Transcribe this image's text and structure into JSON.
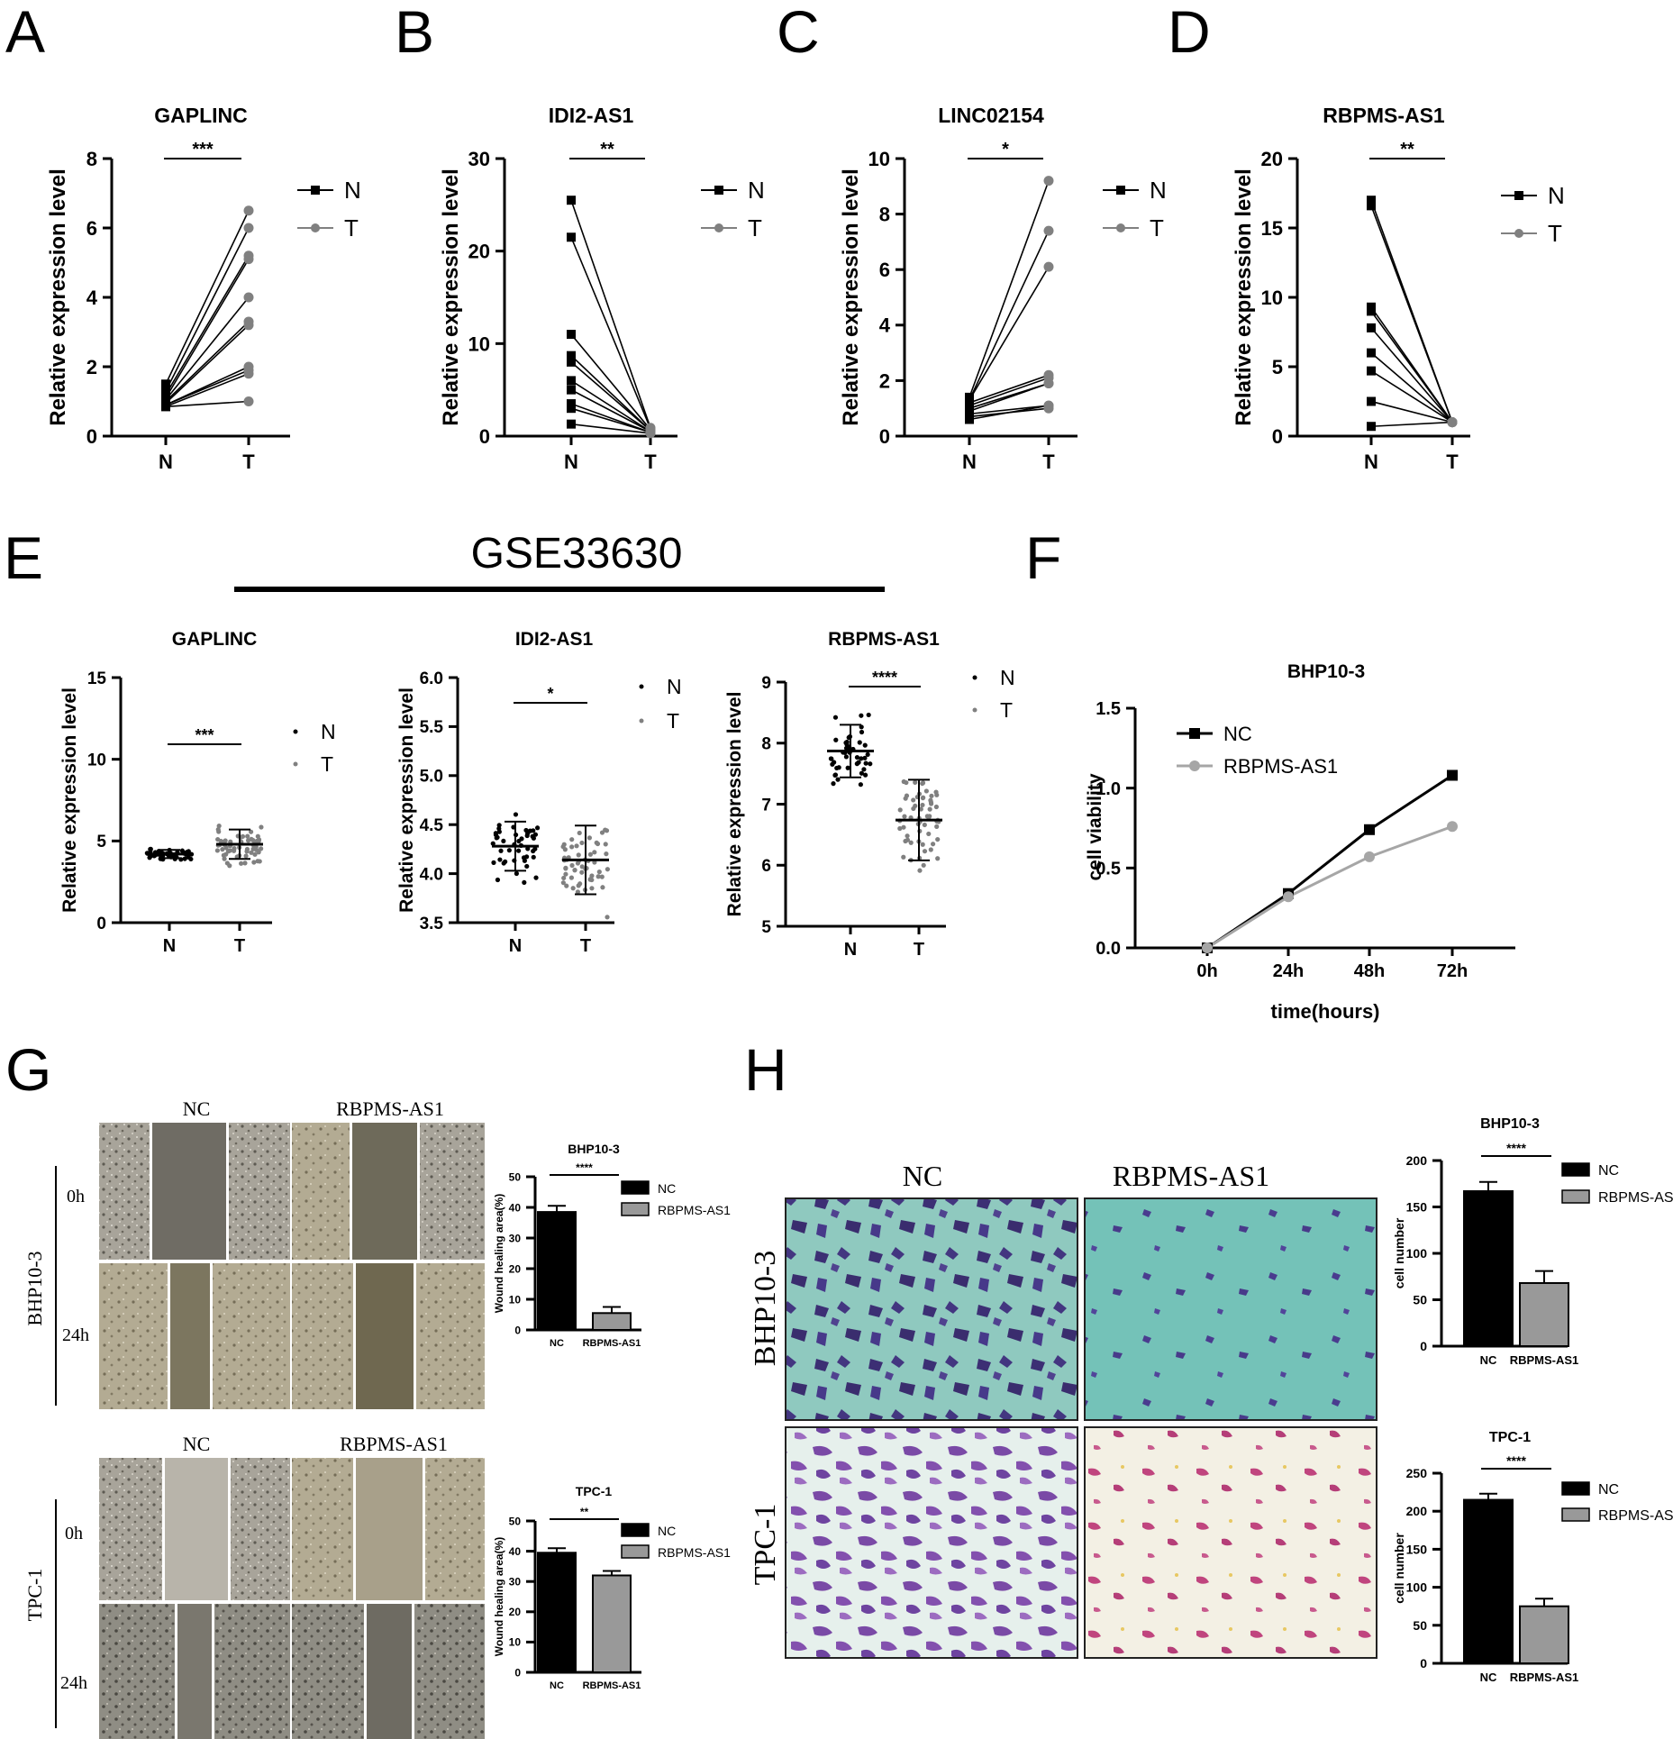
{
  "panels": {
    "A": "A",
    "B": "B",
    "C": "C",
    "D": "D",
    "E": "E",
    "F": "F",
    "G": "G",
    "H": "H"
  },
  "e_header": "GSE33630",
  "common": {
    "ylabel": "Relative expression level",
    "x_n": "N",
    "x_t": "T",
    "legend_n": "N",
    "legend_t": "T"
  },
  "colors": {
    "n": "#000000",
    "t": "#808080",
    "nc_bar": "#000000",
    "rb_bar": "#999999"
  },
  "chart_data": [
    {
      "id": "A",
      "type": "line",
      "title": "GAPLINC",
      "sig": "***",
      "ylabel": "Relative expression level",
      "ylim": [
        0,
        8
      ],
      "yticks": [
        0,
        2,
        4,
        6,
        8
      ],
      "categories": [
        "N",
        "T"
      ],
      "pairs": [
        [
          1.5,
          6.5
        ],
        [
          1.3,
          6.0
        ],
        [
          1.2,
          5.2
        ],
        [
          1.1,
          5.1
        ],
        [
          1.05,
          4.0
        ],
        [
          1.0,
          3.3
        ],
        [
          0.95,
          3.2
        ],
        [
          0.9,
          2.0
        ],
        [
          0.9,
          1.9
        ],
        [
          0.85,
          1.8
        ],
        [
          0.85,
          1.0
        ]
      ]
    },
    {
      "id": "B",
      "type": "line",
      "title": "IDI2-AS1",
      "sig": "**",
      "ylabel": "Relative expression level",
      "ylim": [
        0,
        30
      ],
      "yticks": [
        0,
        10,
        20,
        30
      ],
      "categories": [
        "N",
        "T"
      ],
      "pairs": [
        [
          25.5,
          0.9
        ],
        [
          21.5,
          0.8
        ],
        [
          11.0,
          0.7
        ],
        [
          8.7,
          0.6
        ],
        [
          8.0,
          0.6
        ],
        [
          6.0,
          0.5
        ],
        [
          5.0,
          0.5
        ],
        [
          3.5,
          0.4
        ],
        [
          3.0,
          0.4
        ],
        [
          1.3,
          0.3
        ]
      ]
    },
    {
      "id": "C",
      "type": "line",
      "title": "LINC02154",
      "sig": "*",
      "ylabel": "Relative expression level",
      "ylim": [
        0,
        10
      ],
      "yticks": [
        0,
        2,
        4,
        6,
        8,
        10
      ],
      "categories": [
        "N",
        "T"
      ],
      "pairs": [
        [
          1.4,
          9.2
        ],
        [
          1.3,
          7.4
        ],
        [
          1.3,
          6.1
        ],
        [
          1.2,
          2.2
        ],
        [
          1.1,
          2.1
        ],
        [
          1.0,
          1.9
        ],
        [
          0.9,
          1.9
        ],
        [
          0.8,
          1.1
        ],
        [
          0.7,
          1.0
        ],
        [
          0.6,
          1.1
        ]
      ]
    },
    {
      "id": "D",
      "type": "line",
      "title": "RBPMS-AS1",
      "sig": "**",
      "ylabel": "Relative expression level",
      "ylim": [
        0,
        20
      ],
      "yticks": [
        0,
        5,
        10,
        15,
        20
      ],
      "categories": [
        "N",
        "T"
      ],
      "pairs": [
        [
          17.0,
          1.0
        ],
        [
          16.6,
          1.0
        ],
        [
          9.3,
          1.0
        ],
        [
          9.0,
          1.0
        ],
        [
          7.8,
          1.0
        ],
        [
          6.0,
          1.0
        ],
        [
          4.7,
          1.0
        ],
        [
          2.5,
          1.0
        ],
        [
          0.7,
          1.0
        ]
      ]
    },
    {
      "id": "E1",
      "type": "scatter",
      "title": "GAPLINC",
      "sig": "***",
      "ylabel": "Relative expression level",
      "ylim": [
        0,
        15
      ],
      "yticks": [
        0,
        5,
        10,
        15
      ],
      "categories": [
        "N",
        "T"
      ],
      "mean": [
        4.2,
        4.8
      ],
      "sd": [
        0.25,
        0.9
      ],
      "n_points": [
        45,
        60
      ]
    },
    {
      "id": "E2",
      "type": "scatter",
      "title": "IDI2-AS1",
      "sig": "*",
      "ylabel": "Relative expression level",
      "ylim": [
        3.5,
        6.0
      ],
      "yticks": [
        3.5,
        4.0,
        4.5,
        5.0,
        5.5,
        6.0
      ],
      "categories": [
        "N",
        "T"
      ],
      "mean": [
        4.28,
        4.14
      ],
      "sd": [
        0.25,
        0.35
      ],
      "n_points": [
        45,
        60
      ]
    },
    {
      "id": "E3",
      "type": "scatter",
      "title": "RBPMS-AS1",
      "sig": "****",
      "ylabel": "Relative expression level",
      "ylim": [
        5,
        9
      ],
      "yticks": [
        5,
        6,
        7,
        8,
        9
      ],
      "categories": [
        "N",
        "T"
      ],
      "mean": [
        7.87,
        6.74
      ],
      "sd": [
        0.43,
        0.66
      ],
      "n_points": [
        45,
        60
      ]
    },
    {
      "id": "F",
      "type": "line",
      "title": "BHP10-3",
      "xlabel": "time(hours)",
      "ylabel": "cell viability",
      "categories": [
        "0h",
        "24h",
        "48h",
        "72h"
      ],
      "ylim": [
        0,
        1.5
      ],
      "yticks": [
        "0.0",
        "0.5",
        "1.0",
        "1.5"
      ],
      "series": [
        {
          "name": "NC",
          "values": [
            0.0,
            0.34,
            0.74,
            1.08
          ]
        },
        {
          "name": "RBPMS-AS1",
          "values": [
            0.0,
            0.32,
            0.57,
            0.76
          ]
        }
      ]
    },
    {
      "id": "G1",
      "type": "bar",
      "title": "BHP10-3",
      "sig": "****",
      "ylabel": "Wound healing area(%)",
      "ylim": [
        0,
        50
      ],
      "yticks": [
        0,
        10,
        20,
        30,
        40,
        50
      ],
      "categories": [
        "NC",
        "RBPMS-AS1"
      ],
      "values": [
        38.5,
        5.5
      ],
      "errors": [
        2.0,
        2.0
      ]
    },
    {
      "id": "G2",
      "type": "bar",
      "title": "TPC-1",
      "sig": "**",
      "ylabel": "Wound healing area(%)",
      "ylim": [
        0,
        50
      ],
      "yticks": [
        0,
        10,
        20,
        30,
        40,
        50
      ],
      "categories": [
        "NC",
        "RBPMS-AS1"
      ],
      "values": [
        39.5,
        32.0
      ],
      "errors": [
        1.5,
        1.5
      ]
    },
    {
      "id": "H1",
      "type": "bar",
      "title": "BHP10-3",
      "sig": "****",
      "ylabel": "cell number",
      "ylim": [
        0,
        200
      ],
      "yticks": [
        0,
        50,
        100,
        150,
        200
      ],
      "categories": [
        "NC",
        "RBPMS-AS1"
      ],
      "values": [
        167,
        68
      ],
      "errors": [
        10,
        13
      ]
    },
    {
      "id": "H2",
      "type": "bar",
      "title": "TPC-1",
      "sig": "****",
      "ylabel": "cell number",
      "ylim": [
        0,
        250
      ],
      "yticks": [
        0,
        50,
        100,
        150,
        200,
        250
      ],
      "categories": [
        "NC",
        "RBPMS-AS1"
      ],
      "values": [
        215,
        75
      ],
      "errors": [
        8,
        10
      ]
    }
  ],
  "g_images": {
    "top_cols": [
      "NC",
      "RBPMS-AS1"
    ],
    "top_side": "BHP10-3",
    "top_rows": [
      "0h",
      "24h"
    ],
    "bottom_cols": [
      "NC",
      "RBPMS-AS1"
    ],
    "bottom_side": "TPC-1",
    "bottom_rows": [
      "0h",
      "24h"
    ]
  },
  "h_images": {
    "cols": [
      "NC",
      "RBPMS-AS1"
    ],
    "rows": [
      "BHP10-3",
      "TPC-1"
    ]
  }
}
